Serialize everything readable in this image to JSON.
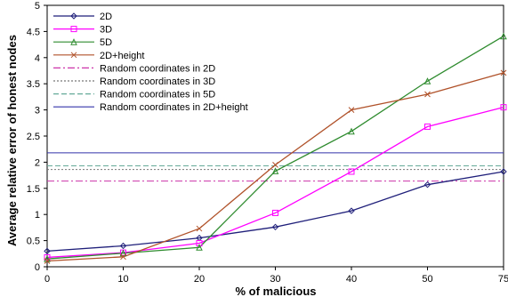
{
  "chart_data": {
    "type": "line",
    "title": "",
    "xlabel": "% of malicious",
    "ylabel": "Average relative error of honest nodes",
    "categories": [
      "0",
      "10",
      "20",
      "30",
      "40",
      "50",
      "75"
    ],
    "ylim": [
      0,
      5
    ],
    "yticks": [
      "0",
      "0.5",
      "1",
      "1.5",
      "2",
      "2.5",
      "3",
      "3.5",
      "4",
      "4.5",
      "5"
    ],
    "grid": false,
    "legend_position": "top-left",
    "series": [
      {
        "name": "2D",
        "values": [
          0.3,
          0.4,
          0.55,
          0.76,
          1.07,
          1.57,
          1.82
        ],
        "color": "#1f1f7a",
        "dash": "",
        "marker": "diamond"
      },
      {
        "name": "3D",
        "values": [
          0.18,
          0.27,
          0.45,
          1.03,
          1.82,
          2.68,
          3.05
        ],
        "color": "#ff00ff",
        "dash": "",
        "marker": "square"
      },
      {
        "name": "5D",
        "values": [
          0.15,
          0.26,
          0.37,
          1.83,
          2.59,
          3.55,
          4.41
        ],
        "color": "#2e8b2e",
        "dash": "",
        "marker": "triangle"
      },
      {
        "name": "2D+height",
        "values": [
          0.11,
          0.19,
          0.73,
          1.95,
          3.0,
          3.3,
          3.71
        ],
        "color": "#b0522a",
        "dash": "",
        "marker": "x"
      },
      {
        "name": "Random coordinates in 2D",
        "constant": 1.64,
        "color": "#cc33aa",
        "dash": "8,3,2,3"
      },
      {
        "name": "Random coordinates in 3D",
        "constant": 1.86,
        "color": "#777777",
        "dash": "2,2"
      },
      {
        "name": "Random coordinates in 5D",
        "constant": 1.93,
        "color": "#66aa99",
        "dash": "6,3"
      },
      {
        "name": "Random coordinates in 2D+height",
        "constant": 2.18,
        "color": "#3333aa",
        "dash": ""
      }
    ]
  }
}
